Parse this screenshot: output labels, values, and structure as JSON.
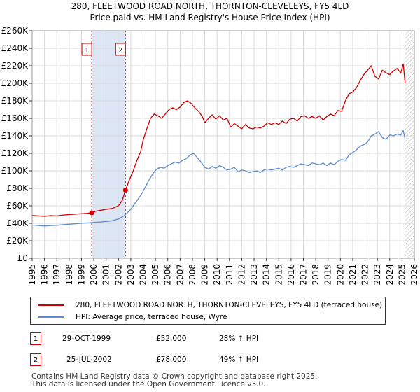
{
  "chart_data": {
    "type": "line",
    "title": "280, FLEETWOOD ROAD NORTH, THORNTON-CLEVELEYS, FY5 4LD",
    "subtitle": "Price paid vs. HM Land Registry's House Price Index (HPI)",
    "xlabel": "",
    "ylabel": "",
    "xlim": [
      1995,
      2026
    ],
    "ylim": [
      0,
      260000
    ],
    "x_ticks": [
      "1995",
      "1996",
      "1997",
      "1998",
      "1999",
      "2000",
      "2001",
      "2002",
      "2003",
      "2004",
      "2005",
      "2006",
      "2007",
      "2008",
      "2009",
      "2010",
      "2011",
      "2012",
      "2013",
      "2014",
      "2015",
      "2016",
      "2017",
      "2018",
      "2019",
      "2020",
      "2021",
      "2022",
      "2023",
      "2024",
      "2025",
      "2026"
    ],
    "y_ticks": [
      "£0",
      "£20K",
      "£40K",
      "£60K",
      "£80K",
      "£100K",
      "£120K",
      "£140K",
      "£160K",
      "£180K",
      "£200K",
      "£220K",
      "£240K",
      "£260K"
    ],
    "grid": true,
    "shaded_span": [
      1999.83,
      2002.57
    ],
    "hatched_future_from": 2025.25,
    "series": [
      {
        "name": "280, FLEETWOOD ROAD NORTH, THORNTON-CLEVELEYS, FY5 4LD (terraced house)",
        "color": "#cc0000",
        "x": [
          1995.0,
          1995.5,
          1996.0,
          1996.5,
          1997.0,
          1997.5,
          1998.0,
          1998.5,
          1999.0,
          1999.5,
          1999.83,
          2000.2,
          2000.6,
          2001.0,
          2001.5,
          2002.0,
          2002.3,
          2002.57,
          2002.9,
          2003.2,
          2003.5,
          2003.8,
          2004.0,
          2004.3,
          2004.6,
          2004.9,
          2005.2,
          2005.5,
          2005.8,
          2006.1,
          2006.4,
          2006.7,
          2007.0,
          2007.3,
          2007.6,
          2007.9,
          2008.2,
          2008.5,
          2008.8,
          2009.0,
          2009.3,
          2009.6,
          2009.9,
          2010.2,
          2010.5,
          2010.8,
          2011.1,
          2011.4,
          2011.7,
          2012.0,
          2012.3,
          2012.6,
          2012.9,
          2013.2,
          2013.5,
          2013.8,
          2014.1,
          2014.4,
          2014.7,
          2015.0,
          2015.3,
          2015.6,
          2015.9,
          2016.2,
          2016.5,
          2016.8,
          2017.1,
          2017.4,
          2017.7,
          2018.0,
          2018.3,
          2018.6,
          2018.9,
          2019.2,
          2019.5,
          2019.8,
          2020.1,
          2020.4,
          2020.7,
          2021.0,
          2021.3,
          2021.6,
          2021.9,
          2022.2,
          2022.5,
          2022.8,
          2023.1,
          2023.4,
          2023.7,
          2024.0,
          2024.3,
          2024.6,
          2024.9,
          2025.1,
          2025.25
        ],
        "values": [
          49000,
          48500,
          48000,
          48800,
          48500,
          49500,
          50000,
          50500,
          51000,
          51500,
          52000,
          54000,
          55000,
          56000,
          57000,
          60000,
          66000,
          78000,
          90000,
          100000,
          112000,
          122000,
          135000,
          148000,
          160000,
          165000,
          163000,
          160000,
          165000,
          170000,
          172000,
          170000,
          173000,
          178000,
          180000,
          177000,
          172000,
          168000,
          162000,
          155000,
          160000,
          164000,
          159000,
          163000,
          158000,
          160000,
          150000,
          154000,
          151000,
          148000,
          153000,
          149000,
          148000,
          150000,
          149000,
          151000,
          155000,
          153000,
          155000,
          153000,
          157000,
          154000,
          159000,
          160000,
          157000,
          162000,
          163000,
          160000,
          162000,
          160000,
          163000,
          158000,
          162000,
          165000,
          163000,
          169000,
          168000,
          180000,
          188000,
          190000,
          195000,
          203000,
          210000,
          215000,
          220000,
          208000,
          205000,
          215000,
          212000,
          210000,
          214000,
          217000,
          212000,
          222000,
          200000
        ]
      },
      {
        "name": "HPI: Average price, terraced house, Wyre",
        "color": "#5b8bd0",
        "x": [
          1995.0,
          1995.5,
          1996.0,
          1996.5,
          1997.0,
          1997.5,
          1998.0,
          1998.5,
          1999.0,
          1999.5,
          2000.0,
          2000.5,
          2001.0,
          2001.5,
          2002.0,
          2002.5,
          2003.0,
          2003.3,
          2003.6,
          2003.9,
          2004.2,
          2004.5,
          2004.8,
          2005.1,
          2005.4,
          2005.7,
          2006.0,
          2006.3,
          2006.6,
          2006.9,
          2007.2,
          2007.5,
          2007.8,
          2008.1,
          2008.4,
          2008.7,
          2009.0,
          2009.3,
          2009.6,
          2009.9,
          2010.2,
          2010.5,
          2010.8,
          2011.1,
          2011.4,
          2011.7,
          2012.0,
          2012.3,
          2012.6,
          2012.9,
          2013.2,
          2013.5,
          2013.8,
          2014.1,
          2014.4,
          2014.7,
          2015.0,
          2015.3,
          2015.6,
          2015.9,
          2016.2,
          2016.5,
          2016.8,
          2017.1,
          2017.4,
          2017.7,
          2018.0,
          2018.3,
          2018.6,
          2018.9,
          2019.2,
          2019.5,
          2019.8,
          2020.1,
          2020.4,
          2020.7,
          2021.0,
          2021.3,
          2021.6,
          2021.9,
          2022.2,
          2022.5,
          2022.8,
          2023.1,
          2023.4,
          2023.7,
          2024.0,
          2024.3,
          2024.6,
          2024.9,
          2025.1,
          2025.25
        ],
        "values": [
          38000,
          37500,
          37000,
          37500,
          37800,
          38500,
          39000,
          39500,
          40000,
          40500,
          41000,
          41500,
          42000,
          43000,
          45000,
          49000,
          56000,
          62000,
          68000,
          74000,
          82000,
          90000,
          97000,
          102000,
          104000,
          103000,
          106000,
          108000,
          110000,
          109000,
          112000,
          114000,
          118000,
          120000,
          115000,
          110000,
          104000,
          102000,
          105000,
          103000,
          106000,
          104000,
          101000,
          102000,
          104000,
          99000,
          101000,
          100000,
          98000,
          99000,
          100000,
          98000,
          101000,
          102000,
          101000,
          102000,
          103000,
          101000,
          104000,
          105000,
          104000,
          106000,
          108000,
          107000,
          106000,
          109000,
          108000,
          107000,
          109000,
          106000,
          109000,
          107000,
          111000,
          113000,
          112000,
          118000,
          121000,
          124000,
          128000,
          130000,
          133000,
          140000,
          142000,
          145000,
          138000,
          136000,
          141000,
          140000,
          142000,
          141000,
          146000,
          136000
        ]
      }
    ],
    "annotations": [
      {
        "label": "1",
        "x": 1999.83,
        "value": 52000,
        "date": "29-OCT-1999",
        "price": "£52,000",
        "hpi": "28% ↑ HPI"
      },
      {
        "label": "2",
        "x": 2002.57,
        "value": 78000,
        "date": "25-JUL-2002",
        "price": "£78,000",
        "hpi": "49% ↑ HPI"
      }
    ]
  },
  "footer": {
    "line1": "Contains HM Land Registry data © Crown copyright and database right 2025.",
    "line2": "This data is licensed under the Open Government Licence v3.0."
  }
}
